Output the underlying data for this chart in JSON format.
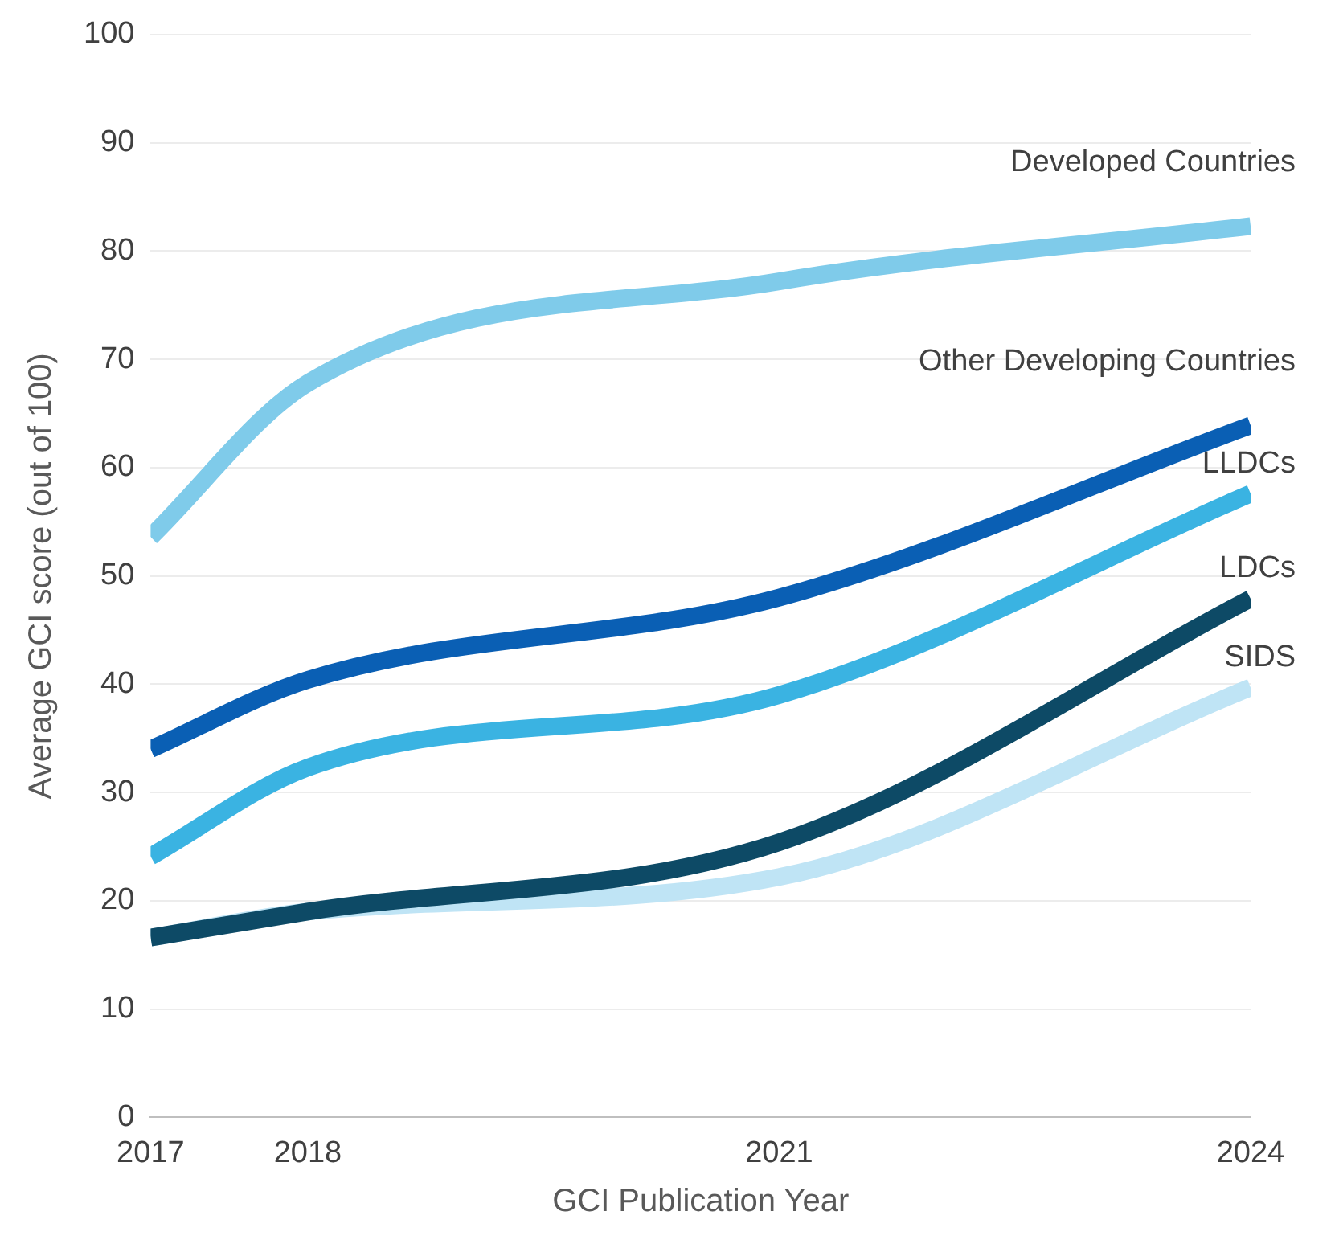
{
  "chart_data": {
    "type": "line",
    "xlabel": "GCI Publication Year",
    "ylabel": "Average GCI score (out of 100)",
    "x": [
      2017,
      2018,
      2021,
      2024
    ],
    "xlim": [
      2017,
      2024
    ],
    "xticks": [
      2017,
      2018,
      2021,
      2024
    ],
    "ylim": [
      0,
      100
    ],
    "yticks": [
      0,
      10,
      20,
      30,
      40,
      50,
      60,
      70,
      80,
      90,
      100
    ],
    "grid": "y",
    "legend": false,
    "marker": "none",
    "line_style": "solid",
    "series": [
      {
        "name": "Developed Countries",
        "color": "#7fcbea",
        "values": [
          53.6,
          67.8,
          77.2,
          82.3
        ]
      },
      {
        "name": "Other Developing Countries",
        "color": "#0a5fb4",
        "values": [
          34,
          40.4,
          48,
          63.9
        ]
      },
      {
        "name": "LLDCs",
        "color": "#3ab3e2",
        "values": [
          24.1,
          32.3,
          39,
          57.6
        ]
      },
      {
        "name": "LDCs",
        "color": "#0d4a66",
        "values": [
          16.6,
          19,
          25.4,
          47.9
        ]
      },
      {
        "name": "SIDS",
        "color": "#bfe4f5",
        "values": [
          16.6,
          19,
          22.2,
          39.7
        ]
      }
    ]
  }
}
